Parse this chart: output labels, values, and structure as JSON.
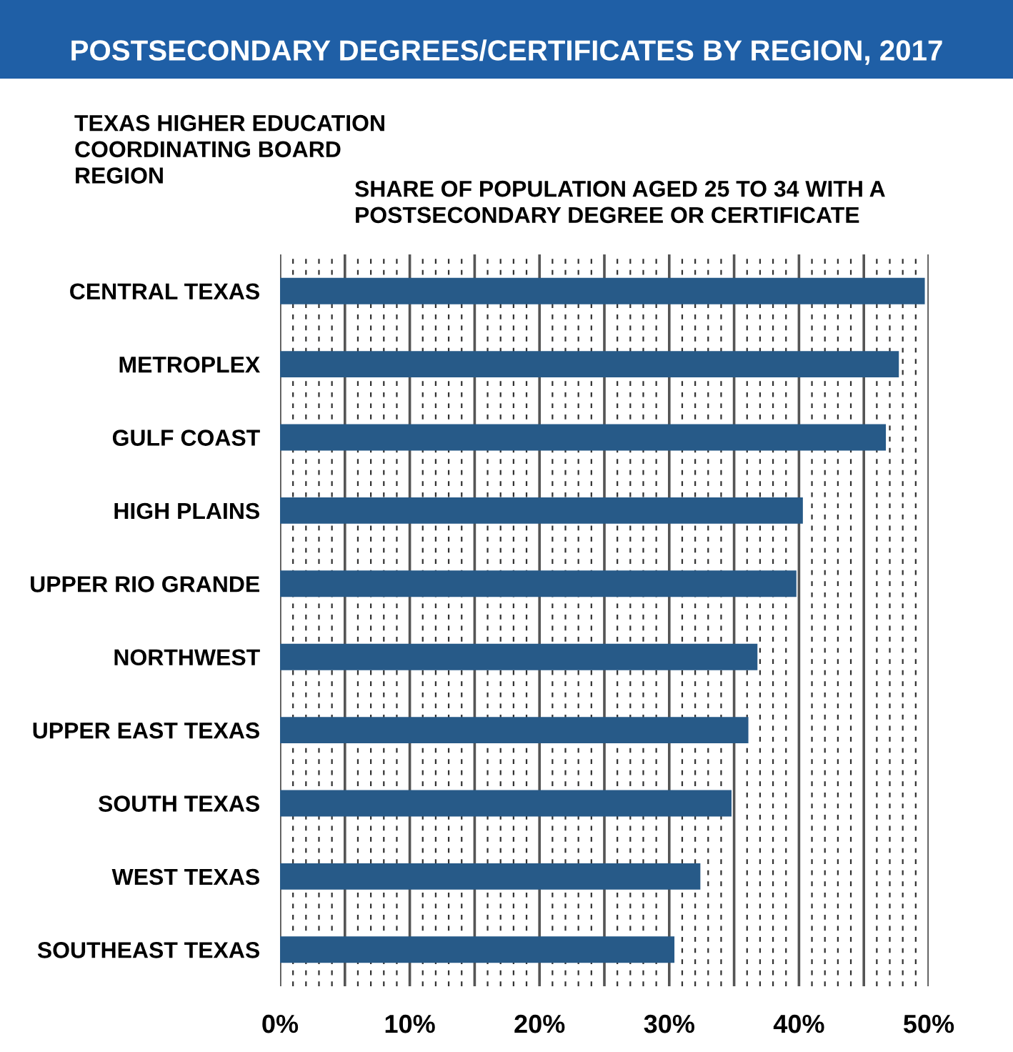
{
  "chart_data": {
    "type": "bar",
    "orientation": "horizontal",
    "title": "POSTSECONDARY DEGREES/CERTIFICATES BY REGION, 2017",
    "ylabel": "TEXAS HIGHER EDUCATION\nCOORDINATING BOARD\nREGION",
    "xlabel": "SHARE OF POPULATION AGED 25 TO 34 WITH A\nPOSTSECONDARY DEGREE OR CERTIFICATE",
    "categories": [
      "CENTRAL TEXAS",
      "METROPLEX",
      "GULF COAST",
      "HIGH PLAINS",
      "UPPER RIO GRANDE",
      "NORTHWEST",
      "UPPER EAST TEXAS",
      "SOUTH TEXAS",
      "WEST TEXAS",
      "SOUTHEAST TEXAS"
    ],
    "values": [
      49.7,
      47.7,
      46.7,
      40.3,
      39.8,
      36.8,
      36.1,
      34.8,
      32.4,
      30.4
    ],
    "color": "#275a88",
    "xlim": [
      0,
      50
    ],
    "xticks": [
      {
        "value": 0,
        "label": "0%"
      },
      {
        "value": 5,
        "label": null
      },
      {
        "value": 10,
        "label": "10%"
      },
      {
        "value": 15,
        "label": null
      },
      {
        "value": 20,
        "label": "20%"
      },
      {
        "value": 25,
        "label": null
      },
      {
        "value": 30,
        "label": "30%"
      },
      {
        "value": 35,
        "label": null
      },
      {
        "value": 40,
        "label": "40%"
      },
      {
        "value": 45,
        "label": null
      },
      {
        "value": 50,
        "label": "50%"
      }
    ],
    "grid": "x"
  }
}
